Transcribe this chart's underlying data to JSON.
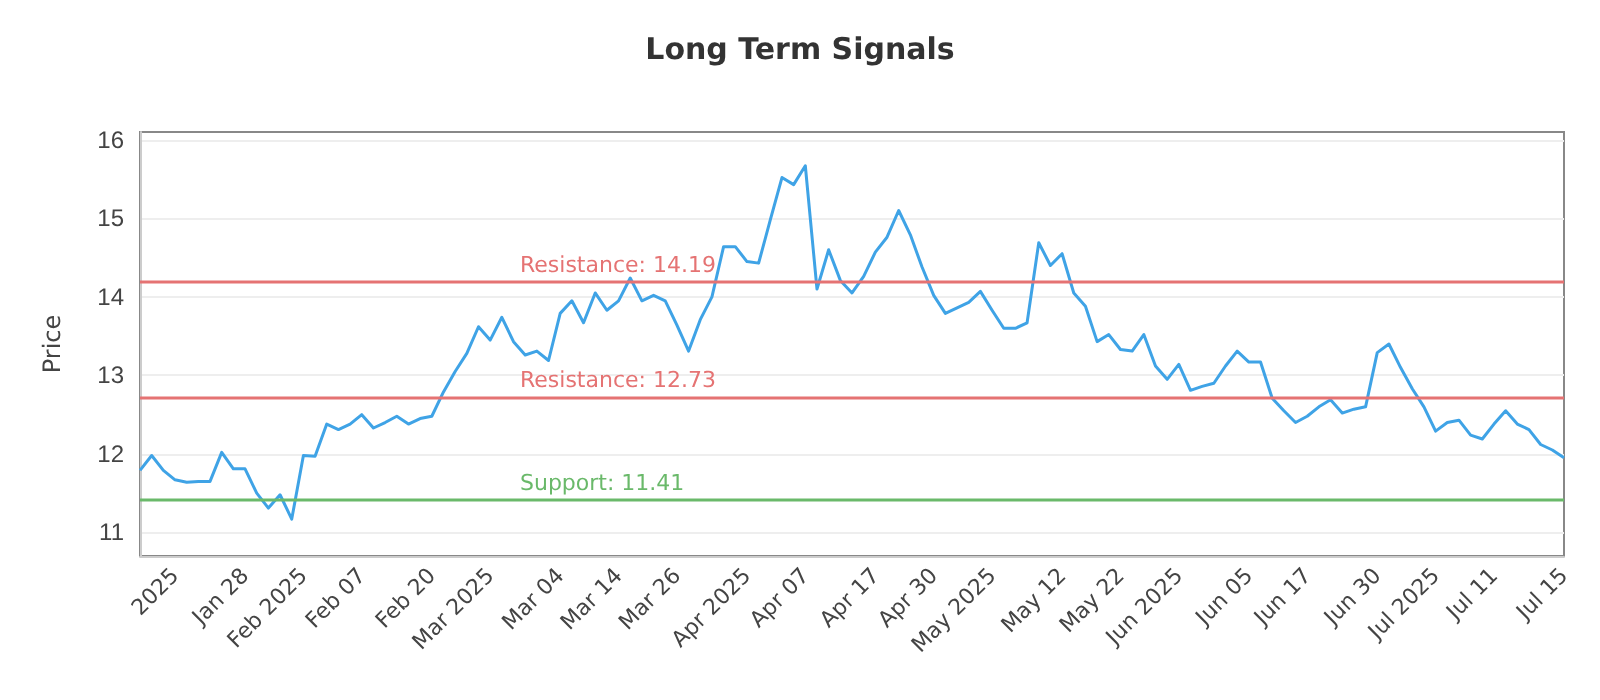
{
  "chart_data": {
    "type": "line",
    "title": "Long Term Signals",
    "ylabel": "Price",
    "categories": [
      null,
      null,
      null,
      "2025",
      null,
      null,
      null,
      null,
      null,
      "Jan 28",
      null,
      null,
      null,
      null,
      "Feb 2025",
      null,
      null,
      null,
      null,
      "Feb 07",
      null,
      null,
      null,
      null,
      null,
      "Feb 20",
      null,
      null,
      null,
      null,
      "Mar 2025",
      null,
      null,
      null,
      null,
      null,
      "Mar 04",
      null,
      null,
      null,
      null,
      "Mar 14",
      null,
      null,
      null,
      null,
      "Mar 26",
      null,
      null,
      null,
      null,
      null,
      "Apr 2025",
      null,
      null,
      null,
      null,
      "Apr 07",
      null,
      null,
      null,
      null,
      null,
      "Apr 17",
      null,
      null,
      null,
      null,
      "Apr 30",
      null,
      null,
      null,
      null,
      "May 2025",
      null,
      null,
      null,
      null,
      null,
      "May 12",
      null,
      null,
      null,
      null,
      "May 22",
      null,
      null,
      null,
      null,
      "Jun 2025",
      null,
      null,
      null,
      null,
      null,
      "Jun 05",
      null,
      null,
      null,
      null,
      "Jun 17",
      null,
      null,
      null,
      null,
      null,
      "Jun 30",
      null,
      null,
      null,
      null,
      "Jul 2025",
      null,
      null,
      null,
      null,
      "Jul 11",
      null,
      null,
      null,
      null,
      null,
      "Jul 15"
    ],
    "series": [
      {
        "color": "#3fa3e6",
        "values": [
          11.79,
          11.98,
          11.79,
          11.67,
          11.64,
          11.65,
          11.65,
          12.02,
          11.81,
          11.81,
          11.5,
          11.31,
          11.48,
          11.17,
          11.98,
          11.97,
          12.38,
          12.31,
          12.38,
          12.5,
          12.33,
          12.4,
          12.48,
          12.38,
          12.45,
          12.48,
          12.79,
          13.05,
          13.28,
          13.62,
          13.45,
          13.74,
          13.43,
          13.26,
          13.31,
          13.19,
          13.79,
          13.95,
          13.67,
          14.05,
          13.83,
          13.95,
          14.24,
          13.95,
          14.02,
          13.95,
          13.64,
          13.31,
          13.71,
          14.0,
          14.64,
          14.64,
          14.45,
          14.43,
          14.98,
          15.52,
          15.43,
          15.67,
          14.1,
          14.6,
          14.21,
          14.05,
          14.26,
          14.57,
          14.76,
          15.1,
          14.79,
          14.38,
          14.02,
          13.79,
          13.86,
          13.93,
          14.07,
          13.83,
          13.6,
          13.6,
          13.67,
          14.69,
          14.4,
          14.55,
          14.05,
          13.88,
          13.43,
          13.52,
          13.33,
          13.31,
          13.52,
          13.12,
          12.95,
          13.14,
          12.81,
          12.86,
          12.9,
          13.12,
          13.31,
          13.17,
          13.17,
          12.71,
          12.55,
          12.4,
          12.48,
          12.6,
          12.69,
          12.52,
          12.57,
          12.6,
          13.29,
          13.4,
          13.1,
          12.83,
          12.6,
          12.29,
          12.4,
          12.43,
          12.24,
          12.19,
          12.38,
          12.55,
          12.38,
          12.31,
          12.12,
          12.05,
          11.95
        ]
      }
    ],
    "ylim": [
      10.7,
      16.1
    ],
    "yticks": [
      11,
      12,
      13,
      14,
      15,
      16
    ],
    "grid": "y",
    "marker": "none",
    "line_style": "solid",
    "ref_lines": [
      {
        "axis": "y",
        "value": 14.19,
        "label": "Resistance: 14.19",
        "color": "#e57373"
      },
      {
        "axis": "y",
        "value": 12.73,
        "label": "Resistance: 12.73",
        "color": "#e57373"
      },
      {
        "axis": "y",
        "value": 11.41,
        "label": "Support: 11.41",
        "color": "#6ab96a"
      }
    ]
  }
}
